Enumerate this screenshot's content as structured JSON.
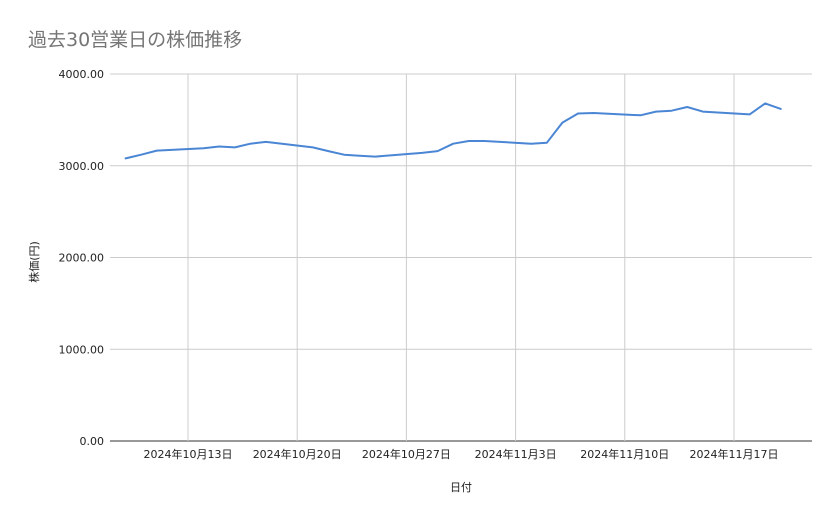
{
  "chart_data": {
    "type": "line",
    "title": "過去30営業日の株価推移",
    "xlabel": "日付",
    "ylabel": "株価(円)",
    "ylim": [
      0,
      4000
    ],
    "yticks": [
      "0.00",
      "1000.00",
      "2000.00",
      "3000.00",
      "4000.00"
    ],
    "xticks": [
      {
        "date": "2024-10-13",
        "label": "2024年10月13日"
      },
      {
        "date": "2024-10-20",
        "label": "2024年10月20日"
      },
      {
        "date": "2024-10-27",
        "label": "2024年10月27日"
      },
      {
        "date": "2024-11-03",
        "label": "2024年11月3日"
      },
      {
        "date": "2024-11-10",
        "label": "2024年11月10日"
      },
      {
        "date": "2024-11-17",
        "label": "2024年11月17日"
      }
    ],
    "xlim": [
      "2024-10-09",
      "2024-11-21"
    ],
    "grid": true,
    "line_color": "#4a86d4",
    "x": [
      "2024-10-09",
      "2024-10-10",
      "2024-10-11",
      "2024-10-14",
      "2024-10-15",
      "2024-10-16",
      "2024-10-17",
      "2024-10-18",
      "2024-10-21",
      "2024-10-22",
      "2024-10-23",
      "2024-10-24",
      "2024-10-25",
      "2024-10-28",
      "2024-10-29",
      "2024-10-30",
      "2024-10-31",
      "2024-11-01",
      "2024-11-04",
      "2024-11-05",
      "2024-11-06",
      "2024-11-07",
      "2024-11-08",
      "2024-11-11",
      "2024-11-12",
      "2024-11-13",
      "2024-11-14",
      "2024-11-15",
      "2024-11-18",
      "2024-11-19",
      "2024-11-20"
    ],
    "values": [
      3080,
      3120,
      3165,
      3190,
      3210,
      3200,
      3240,
      3260,
      3200,
      3160,
      3120,
      3110,
      3100,
      3140,
      3160,
      3240,
      3270,
      3270,
      3240,
      3250,
      3470,
      3570,
      3575,
      3550,
      3590,
      3600,
      3640,
      3590,
      3560,
      3680,
      3620
    ]
  }
}
